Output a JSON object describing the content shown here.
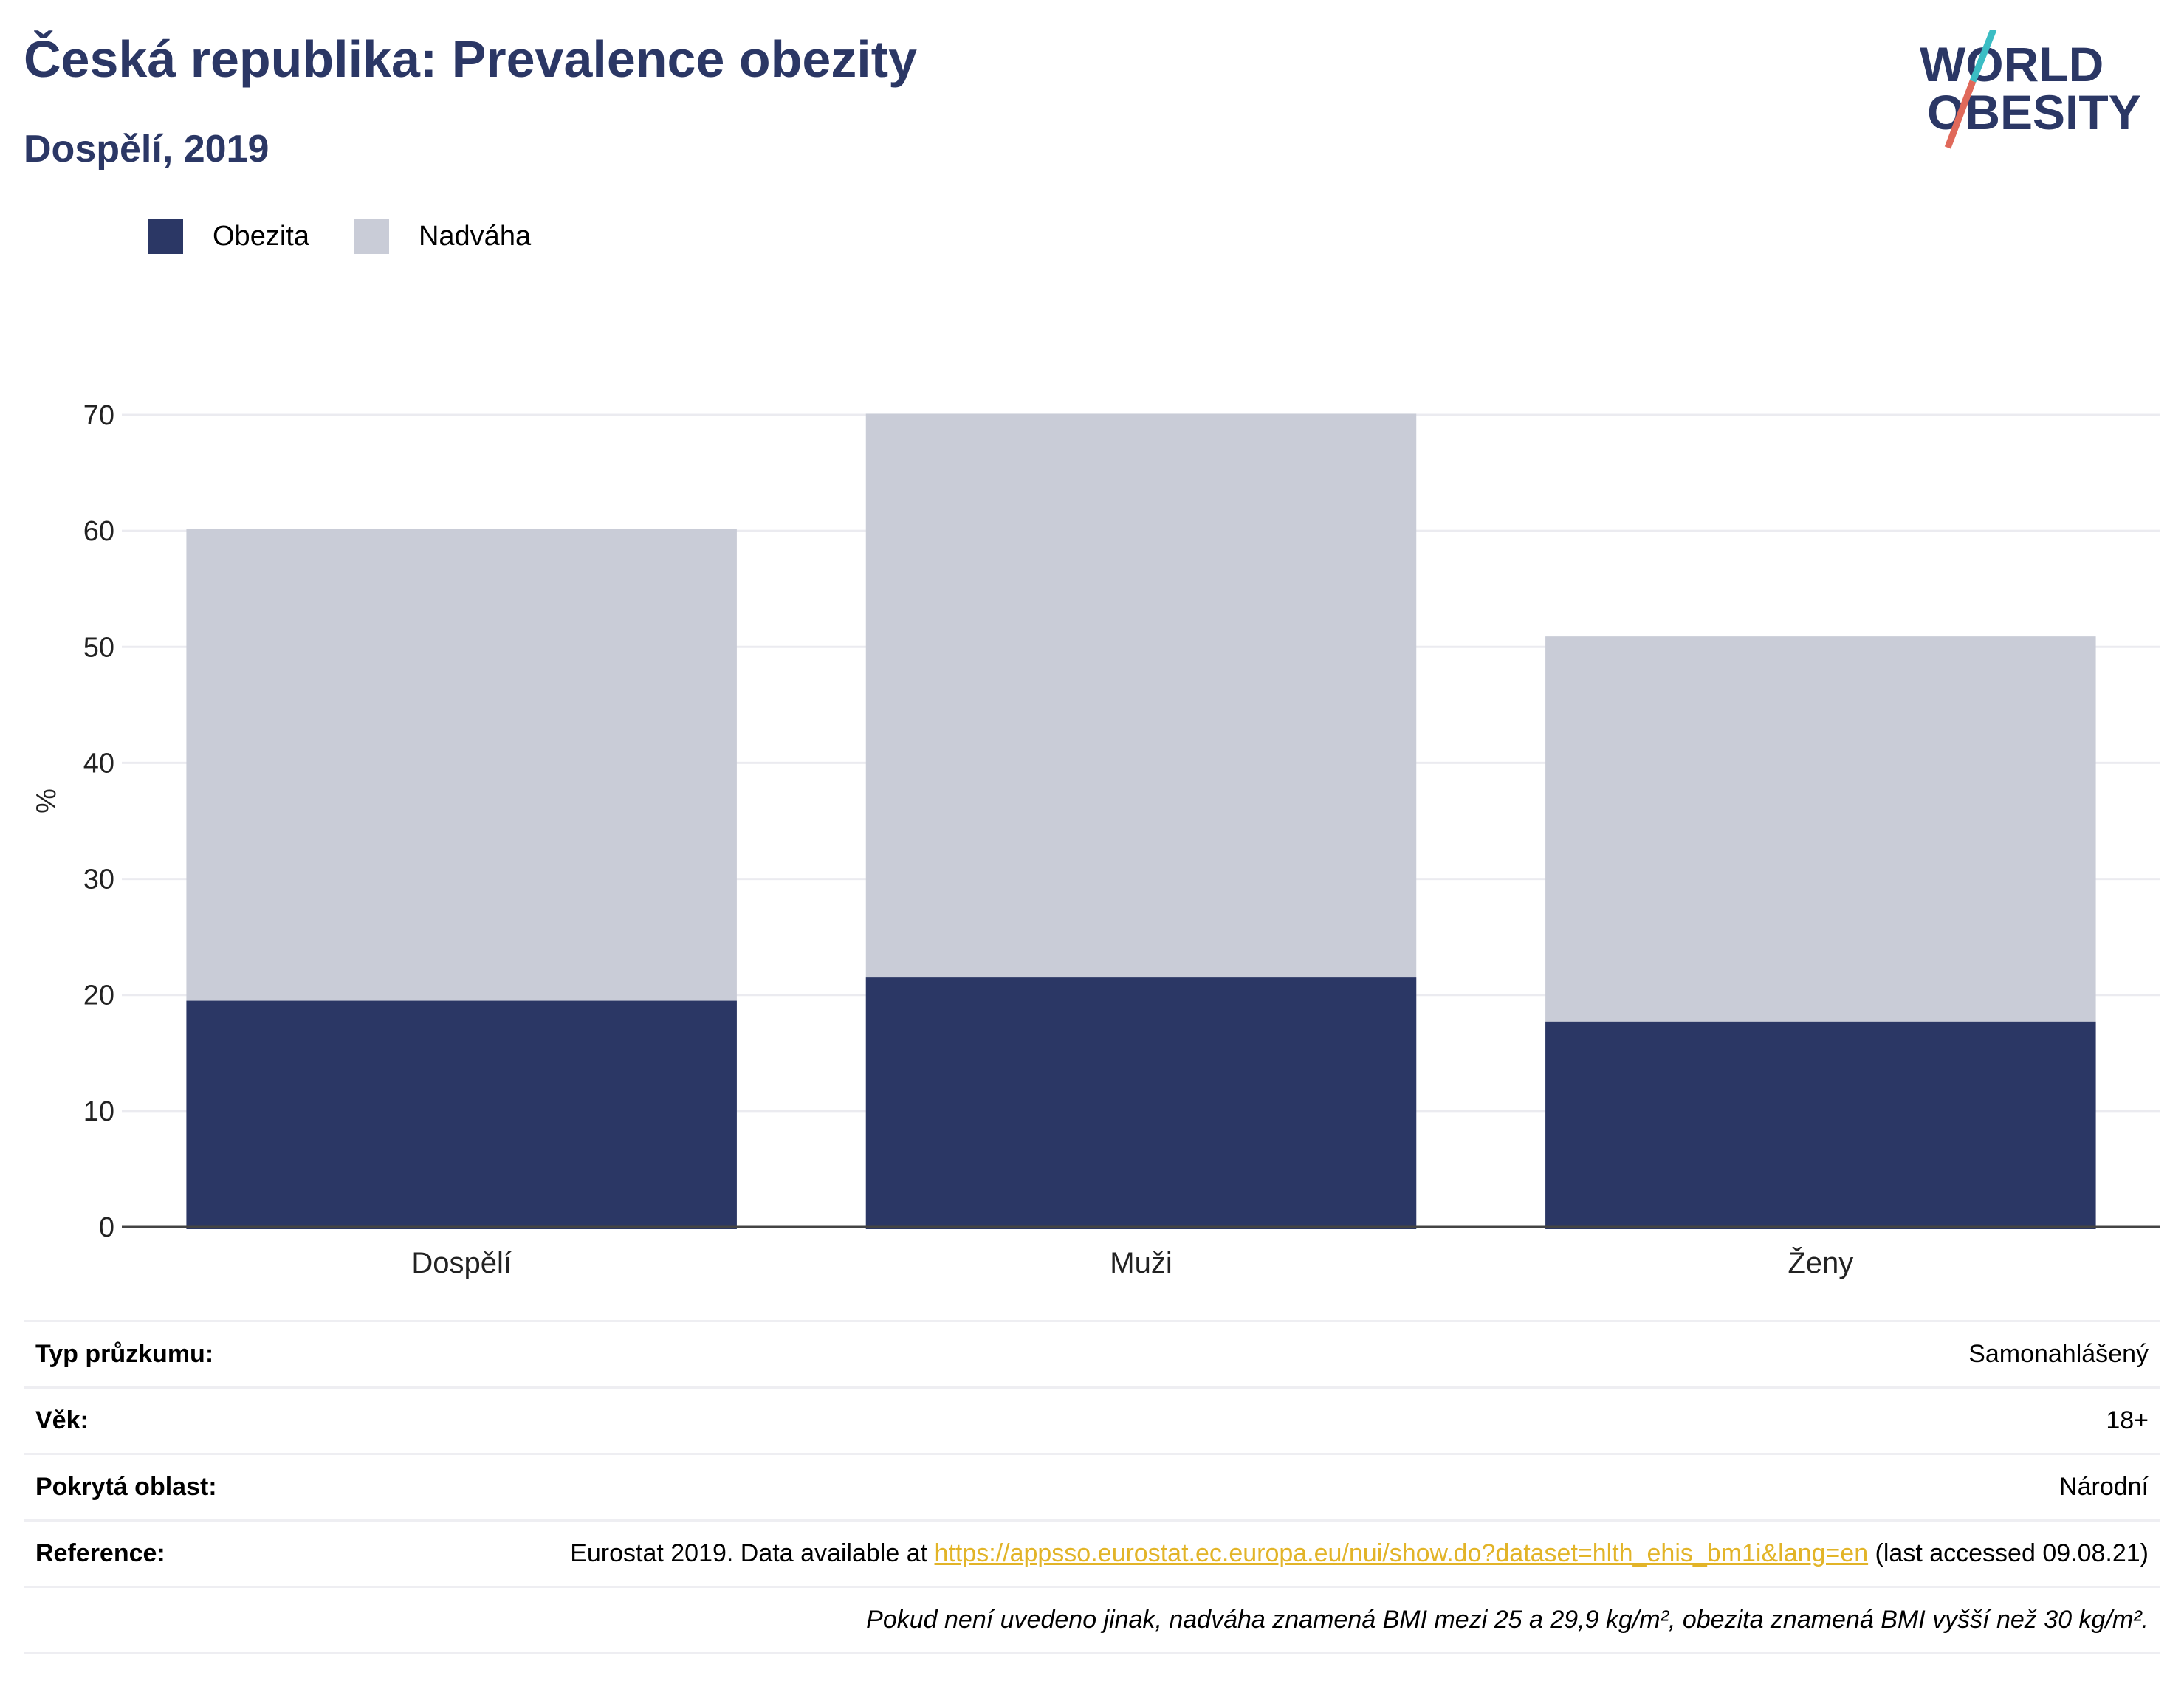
{
  "header": {
    "title": "Česká republika: Prevalence obezity",
    "subtitle": "Dospělí, 2019"
  },
  "logo": {
    "line1": "WORLD",
    "line2": "OBESITY"
  },
  "colors": {
    "obesity": "#2b3765",
    "overweight": "#c9ccd7",
    "accent_teal": "#3bbdc4",
    "accent_red": "#e0695a",
    "link": "#e2b428"
  },
  "chart_data": {
    "type": "bar",
    "stacking": "overlay",
    "categories": [
      "Dospělí",
      "Muži",
      "Ženy"
    ],
    "series": [
      {
        "name": "Obezita",
        "values": [
          19.5,
          21.5,
          17.7
        ]
      },
      {
        "name": "Nadváha",
        "values": [
          60.2,
          70.1,
          50.9
        ]
      }
    ],
    "ylabel": "%",
    "ylim": [
      0,
      70
    ],
    "yticks": [
      0,
      10,
      20,
      30,
      40,
      50,
      60,
      70
    ],
    "grid": true,
    "legend": "top-left"
  },
  "meta": {
    "survey_label": "Typ průzkumu:",
    "survey_value": "Samonahlášený",
    "age_label": "Věk:",
    "age_value": "18+",
    "area_label": "Pokrytá oblast:",
    "area_value": "Národní",
    "ref_label": "Reference:",
    "ref_prefix": "Eurostat 2019. Data available at ",
    "ref_link": "https://appsso.eurostat.ec.europa.eu/nui/show.do?dataset=hlth_ehis_bm1i&lang=en",
    "ref_suffix": " (last accessed 09.08.21)",
    "note": "Pokud není uvedeno jinak, nadváha znamená BMI mezi 25 a 29,9 kg/m², obezita znamená BMI vyšší než 30 kg/m²."
  }
}
